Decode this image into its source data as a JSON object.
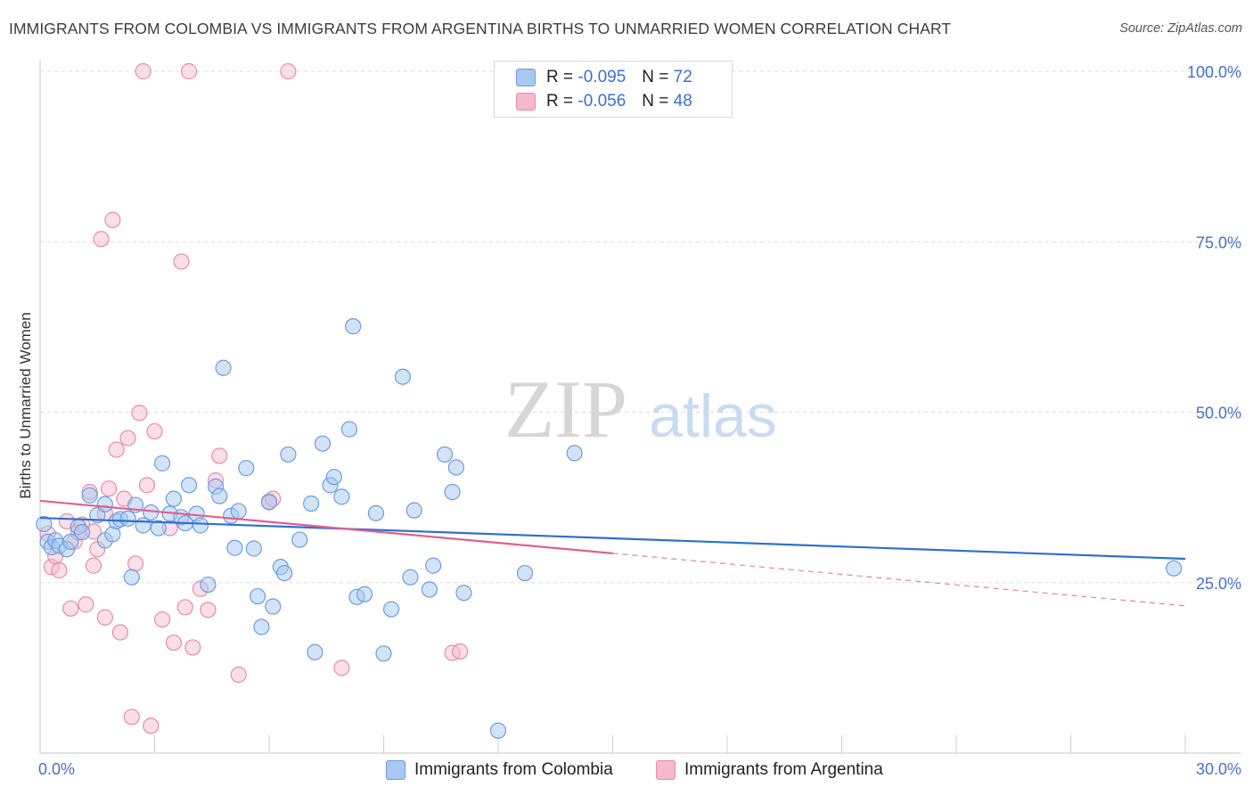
{
  "title": "IMMIGRANTS FROM COLOMBIA VS IMMIGRANTS FROM ARGENTINA BIRTHS TO UNMARRIED WOMEN CORRELATION CHART",
  "source": "Source: ZipAtlas.com",
  "watermark": {
    "zip": "ZIP",
    "atlas": "atlas"
  },
  "legend": {
    "rows": [
      {
        "r_label": "R =",
        "r_value": "-0.095",
        "n_label": "N =",
        "n_value": "72"
      },
      {
        "r_label": "R =",
        "r_value": "-0.056",
        "n_label": "N =",
        "n_value": "48"
      }
    ]
  },
  "bottom_legend": [
    "Immigrants from Colombia",
    "Immigrants from Argentina"
  ],
  "colors": {
    "colombia_fill": "#a8c8f0",
    "colombia_stroke": "#6a9de0",
    "colombia_line": "#2f6fd0",
    "argentina_fill": "#f5b8cc",
    "argentina_stroke": "#e98aa8",
    "argentina_line": "#e0608e",
    "axis_label": "#4472c4",
    "grid": "#dddddd"
  },
  "chart_data": {
    "type": "scatter",
    "title": "IMMIGRANTS FROM COLOMBIA VS IMMIGRANTS FROM ARGENTINA BIRTHS TO UNMARRIED WOMEN CORRELATION CHART",
    "xlabel": "",
    "ylabel": "Births to Unmarried Women",
    "xlim": [
      0,
      30
    ],
    "ylim": [
      0,
      100
    ],
    "x_tick_labels": [
      "0.0%",
      "30.0%"
    ],
    "y_tick_labels": [
      "25.0%",
      "50.0%",
      "75.0%",
      "100.0%"
    ],
    "y_ticks": [
      25,
      50,
      75,
      100
    ],
    "grid": true,
    "legend_position": "top-center",
    "series": [
      {
        "name": "Immigrants from Colombia",
        "r": -0.095,
        "n": 72,
        "trend": {
          "x": [
            0,
            30
          ],
          "y": [
            34.5,
            28.5
          ]
        },
        "points": [
          [
            0.1,
            33.6
          ],
          [
            0.2,
            31.0
          ],
          [
            0.3,
            30.2
          ],
          [
            0.4,
            31.2
          ],
          [
            0.5,
            30.4
          ],
          [
            0.7,
            29.9
          ],
          [
            0.8,
            31.0
          ],
          [
            1.0,
            33.2
          ],
          [
            1.1,
            32.4
          ],
          [
            1.3,
            37.8
          ],
          [
            1.5,
            34.9
          ],
          [
            1.7,
            31.2
          ],
          [
            1.7,
            36.5
          ],
          [
            1.9,
            32.1
          ],
          [
            2.0,
            34.0
          ],
          [
            2.1,
            34.3
          ],
          [
            2.3,
            34.4
          ],
          [
            2.4,
            25.8
          ],
          [
            2.5,
            36.4
          ],
          [
            2.7,
            33.4
          ],
          [
            2.9,
            35.3
          ],
          [
            3.1,
            33.0
          ],
          [
            3.2,
            42.5
          ],
          [
            3.4,
            35.1
          ],
          [
            3.5,
            37.3
          ],
          [
            3.7,
            34.6
          ],
          [
            3.8,
            33.7
          ],
          [
            3.9,
            39.3
          ],
          [
            4.1,
            35.1
          ],
          [
            4.2,
            33.4
          ],
          [
            4.4,
            24.7
          ],
          [
            4.6,
            39.1
          ],
          [
            4.7,
            37.7
          ],
          [
            4.8,
            56.5
          ],
          [
            5.0,
            34.8
          ],
          [
            5.1,
            30.1
          ],
          [
            5.2,
            35.5
          ],
          [
            5.4,
            41.8
          ],
          [
            5.6,
            30.0
          ],
          [
            5.7,
            23.0
          ],
          [
            5.8,
            18.5
          ],
          [
            6.0,
            36.8
          ],
          [
            6.1,
            21.5
          ],
          [
            6.3,
            27.3
          ],
          [
            6.4,
            26.4
          ],
          [
            6.5,
            43.8
          ],
          [
            6.8,
            31.3
          ],
          [
            7.1,
            36.6
          ],
          [
            7.2,
            14.8
          ],
          [
            7.4,
            45.4
          ],
          [
            7.6,
            39.3
          ],
          [
            7.7,
            40.5
          ],
          [
            7.9,
            37.6
          ],
          [
            8.1,
            47.5
          ],
          [
            8.2,
            62.6
          ],
          [
            8.3,
            22.9
          ],
          [
            8.5,
            23.3
          ],
          [
            8.8,
            35.2
          ],
          [
            9.0,
            14.6
          ],
          [
            9.2,
            21.1
          ],
          [
            9.5,
            55.2
          ],
          [
            9.7,
            25.8
          ],
          [
            9.8,
            35.6
          ],
          [
            10.2,
            24.0
          ],
          [
            10.3,
            27.5
          ],
          [
            10.6,
            43.8
          ],
          [
            10.8,
            38.3
          ],
          [
            10.9,
            41.9
          ],
          [
            11.1,
            23.5
          ],
          [
            12.0,
            3.3
          ],
          [
            12.7,
            26.4
          ],
          [
            14.0,
            44.0
          ],
          [
            29.7,
            27.1
          ]
        ]
      },
      {
        "name": "Immigrants from Argentina",
        "r": -0.056,
        "n": 48,
        "trend": {
          "x": [
            0,
            15
          ],
          "y": [
            37.0,
            29.3
          ]
        },
        "trend_extended": {
          "x": [
            15,
            30
          ],
          "y": [
            29.3,
            21.6
          ]
        },
        "points": [
          [
            0.2,
            32.2
          ],
          [
            0.3,
            27.3
          ],
          [
            0.4,
            28.9
          ],
          [
            0.5,
            26.8
          ],
          [
            0.7,
            34.0
          ],
          [
            0.8,
            21.2
          ],
          [
            0.9,
            31.0
          ],
          [
            1.0,
            32.4
          ],
          [
            1.1,
            33.5
          ],
          [
            1.2,
            21.8
          ],
          [
            1.3,
            38.3
          ],
          [
            1.4,
            32.5
          ],
          [
            1.4,
            27.5
          ],
          [
            1.5,
            29.9
          ],
          [
            1.6,
            75.4
          ],
          [
            1.7,
            19.9
          ],
          [
            1.8,
            38.8
          ],
          [
            1.9,
            78.2
          ],
          [
            2.0,
            44.5
          ],
          [
            2.1,
            17.7
          ],
          [
            2.2,
            37.3
          ],
          [
            2.3,
            46.2
          ],
          [
            2.4,
            5.3
          ],
          [
            2.5,
            27.8
          ],
          [
            2.6,
            49.9
          ],
          [
            2.7,
            100.0
          ],
          [
            2.8,
            39.3
          ],
          [
            2.9,
            4.0
          ],
          [
            3.0,
            47.2
          ],
          [
            3.2,
            19.6
          ],
          [
            3.4,
            33.0
          ],
          [
            3.5,
            16.2
          ],
          [
            3.7,
            72.1
          ],
          [
            3.8,
            21.4
          ],
          [
            3.9,
            100.0
          ],
          [
            4.0,
            15.5
          ],
          [
            4.2,
            24.1
          ],
          [
            4.4,
            21.0
          ],
          [
            4.6,
            40.0
          ],
          [
            4.7,
            43.6
          ],
          [
            5.2,
            11.5
          ],
          [
            6.0,
            36.9
          ],
          [
            6.5,
            100.0
          ],
          [
            7.9,
            12.5
          ],
          [
            10.8,
            14.7
          ],
          [
            11.0,
            14.9
          ],
          [
            6.1,
            37.3
          ],
          [
            1.7,
            35.2
          ]
        ]
      }
    ]
  }
}
